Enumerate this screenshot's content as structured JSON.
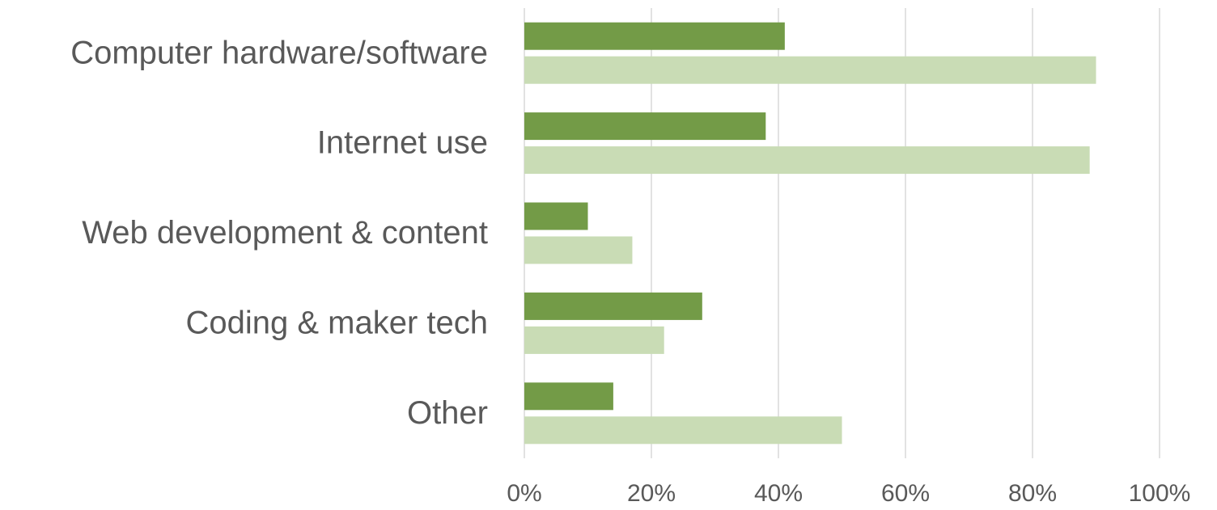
{
  "chart_data": {
    "type": "bar",
    "orientation": "horizontal",
    "categories": [
      "Computer hardware/software",
      "Internet use",
      "Web development & content",
      "Coding & maker tech",
      "Other"
    ],
    "series": [
      {
        "color": "#739b47",
        "values": [
          41,
          38,
          10,
          28,
          14
        ]
      },
      {
        "color": "#c9dcb5",
        "values": [
          90,
          89,
          17,
          22,
          50
        ]
      }
    ],
    "xlim": [
      0,
      100
    ],
    "xticks": [
      {
        "value": 0,
        "label": "0%"
      },
      {
        "value": 20,
        "label": "20%"
      },
      {
        "value": 40,
        "label": "40%"
      },
      {
        "value": 60,
        "label": "60%"
      },
      {
        "value": 80,
        "label": "80%"
      },
      {
        "value": 100,
        "label": "100%"
      }
    ],
    "grid": true
  }
}
